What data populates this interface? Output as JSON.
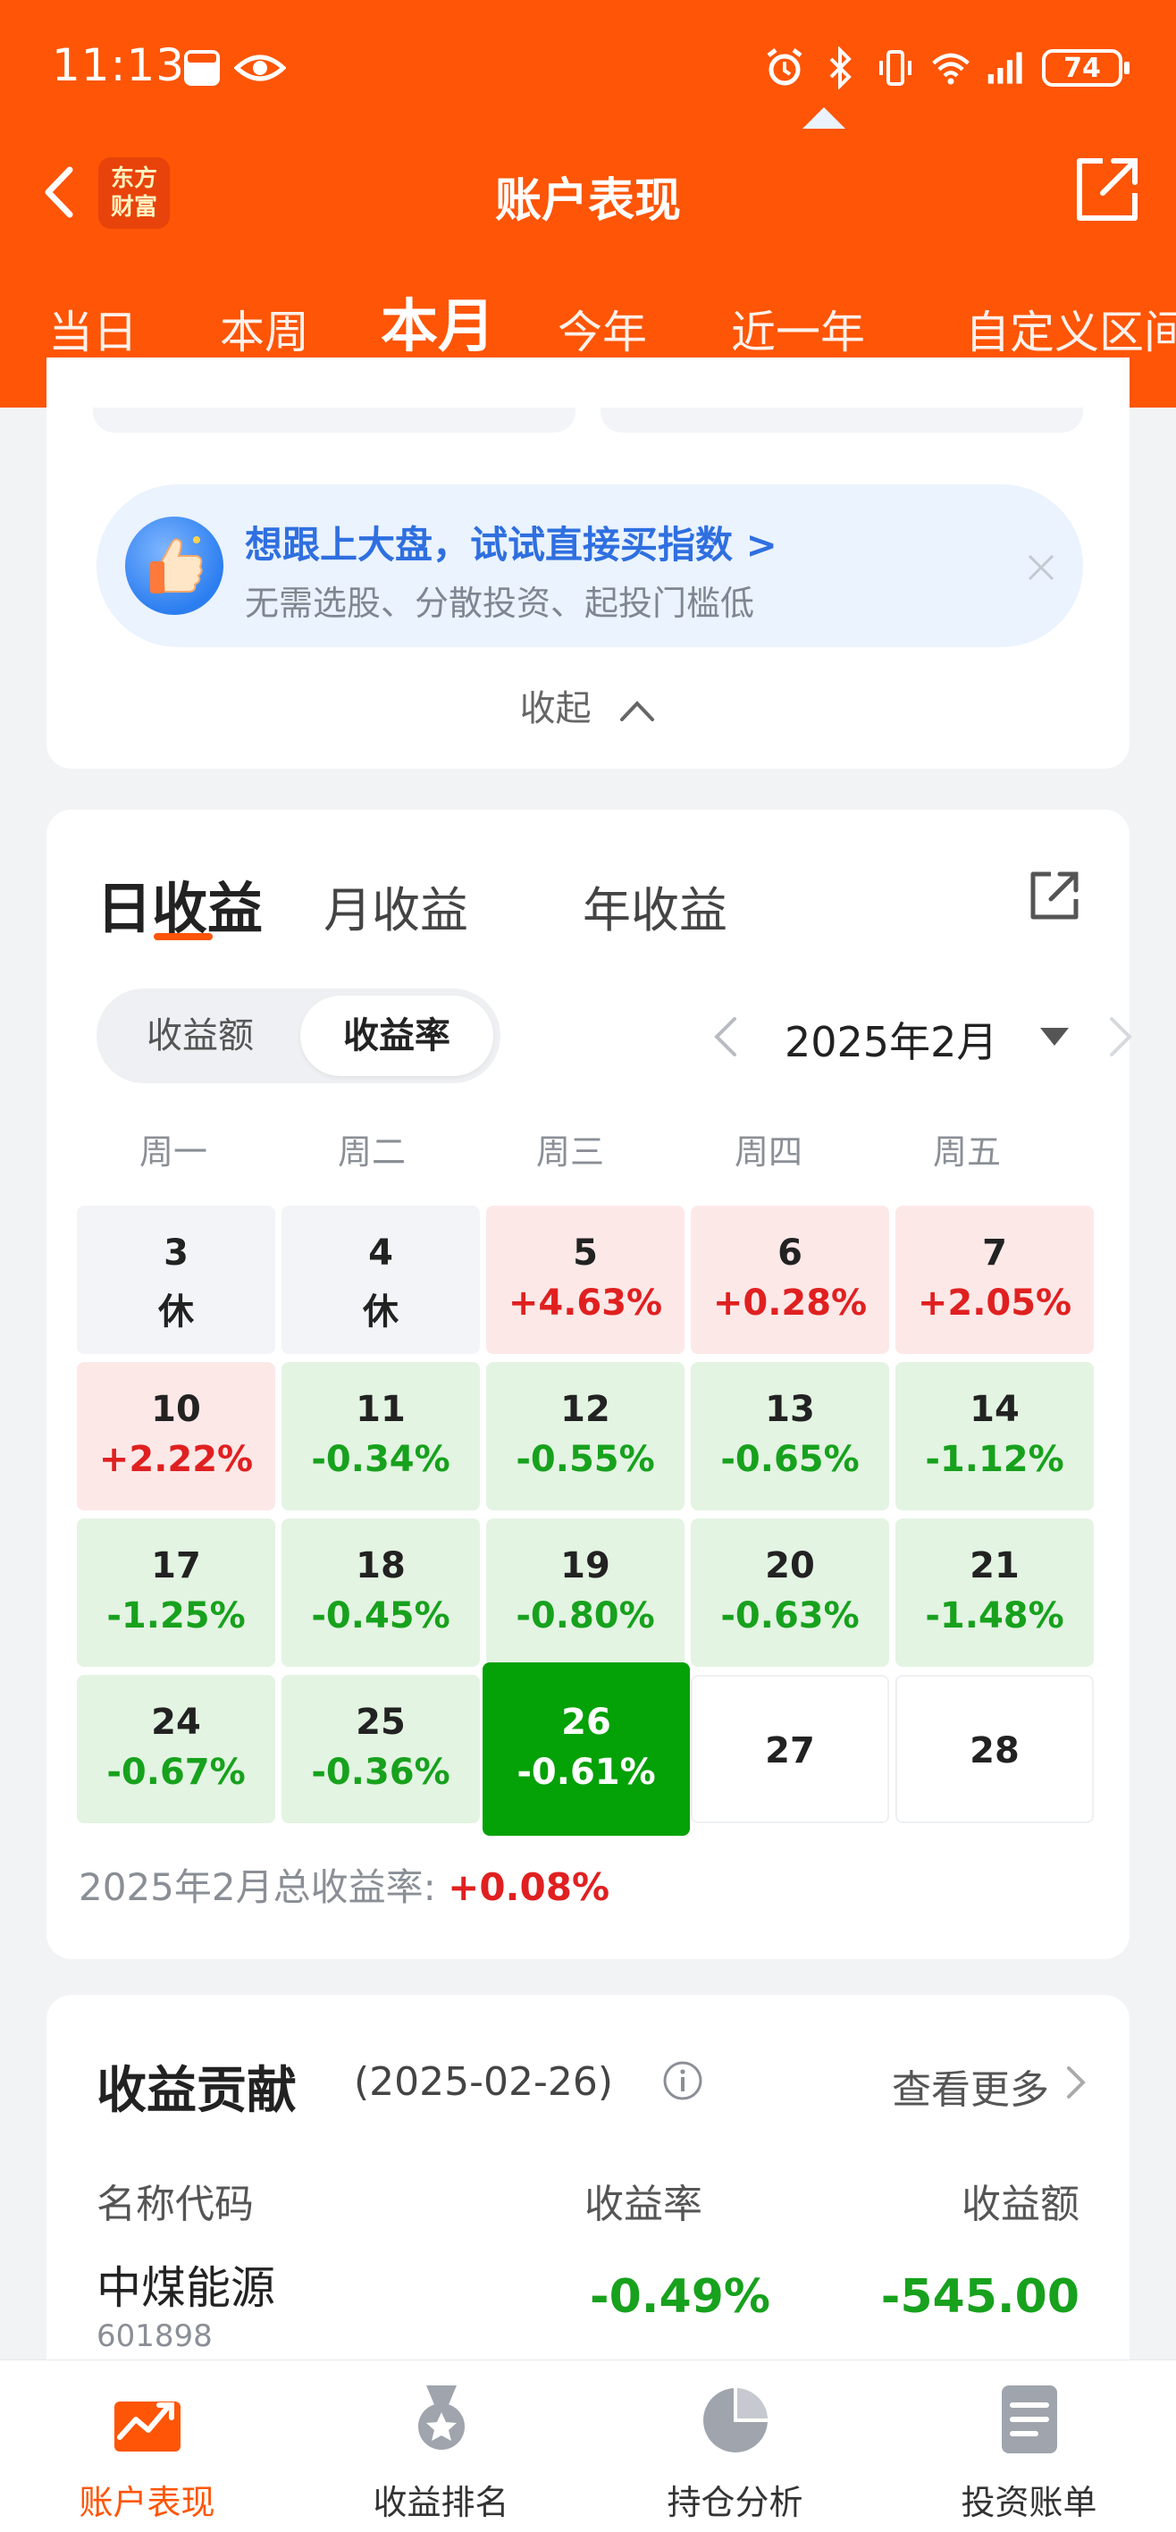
{
  "status_bar": {
    "time": "11:13",
    "battery": "74"
  },
  "nav": {
    "title": "账户表现",
    "logo_line1": "东方",
    "logo_line2": "财富"
  },
  "period_tabs": [
    "当日",
    "本周",
    "本月",
    "今年",
    "近一年",
    "自定义区间"
  ],
  "period_active": "本月",
  "promo": {
    "title": "想跟上大盘，试试直接买指数 >",
    "subtitle": "无需选股、分散投资、起投门槛低"
  },
  "collapse_label": "收起",
  "income_tabs": [
    "日收益",
    "月收益",
    "年收益"
  ],
  "income_active": "日收益",
  "segment": {
    "options": [
      "收益额",
      "收益率"
    ],
    "active": "收益率"
  },
  "month_label": "2025年2月",
  "weekdays": [
    "周一",
    "周二",
    "周三",
    "周四",
    "周五"
  ],
  "calendar": [
    [
      {
        "day": "3",
        "value": "休",
        "state": "rest"
      },
      {
        "day": "4",
        "value": "休",
        "state": "rest"
      },
      {
        "day": "5",
        "value": "+4.63%",
        "state": "up"
      },
      {
        "day": "6",
        "value": "+0.28%",
        "state": "up"
      },
      {
        "day": "7",
        "value": "+2.05%",
        "state": "up"
      }
    ],
    [
      {
        "day": "10",
        "value": "+2.22%",
        "state": "up"
      },
      {
        "day": "11",
        "value": "-0.34%",
        "state": "down"
      },
      {
        "day": "12",
        "value": "-0.55%",
        "state": "down"
      },
      {
        "day": "13",
        "value": "-0.65%",
        "state": "down"
      },
      {
        "day": "14",
        "value": "-1.12%",
        "state": "down"
      }
    ],
    [
      {
        "day": "17",
        "value": "-1.25%",
        "state": "down"
      },
      {
        "day": "18",
        "value": "-0.45%",
        "state": "down"
      },
      {
        "day": "19",
        "value": "-0.80%",
        "state": "down"
      },
      {
        "day": "20",
        "value": "-0.63%",
        "state": "down"
      },
      {
        "day": "21",
        "value": "-1.48%",
        "state": "down"
      }
    ],
    [
      {
        "day": "24",
        "value": "-0.67%",
        "state": "down"
      },
      {
        "day": "25",
        "value": "-0.36%",
        "state": "down"
      },
      {
        "day": "26",
        "value": "-0.61%",
        "state": "selected"
      },
      {
        "day": "27",
        "value": "",
        "state": "empty"
      },
      {
        "day": "28",
        "value": "",
        "state": "empty"
      }
    ]
  ],
  "total": {
    "label": "2025年2月总收益率: ",
    "value": "+0.08%"
  },
  "contribution": {
    "title": "收益贡献",
    "date": "(2025-02-26)",
    "more": "查看更多",
    "columns": [
      "名称代码",
      "收益率",
      "收益额"
    ],
    "rows": [
      {
        "name": "中煤能源",
        "code": "601898",
        "rate": "-0.49%",
        "amount": "-545.00"
      }
    ]
  },
  "bottom_nav": [
    {
      "label": "账户表现",
      "icon": "chart-trend-icon"
    },
    {
      "label": "收益排名",
      "icon": "medal-icon"
    },
    {
      "label": "持仓分析",
      "icon": "pie-chart-icon"
    },
    {
      "label": "投资账单",
      "icon": "bill-icon"
    }
  ],
  "bottom_active": "账户表现",
  "colors": {
    "brand": "#fe5506",
    "up": "#e02020",
    "down": "#17a11d",
    "selected": "#04a107",
    "promo_text": "#2f6fe0"
  }
}
